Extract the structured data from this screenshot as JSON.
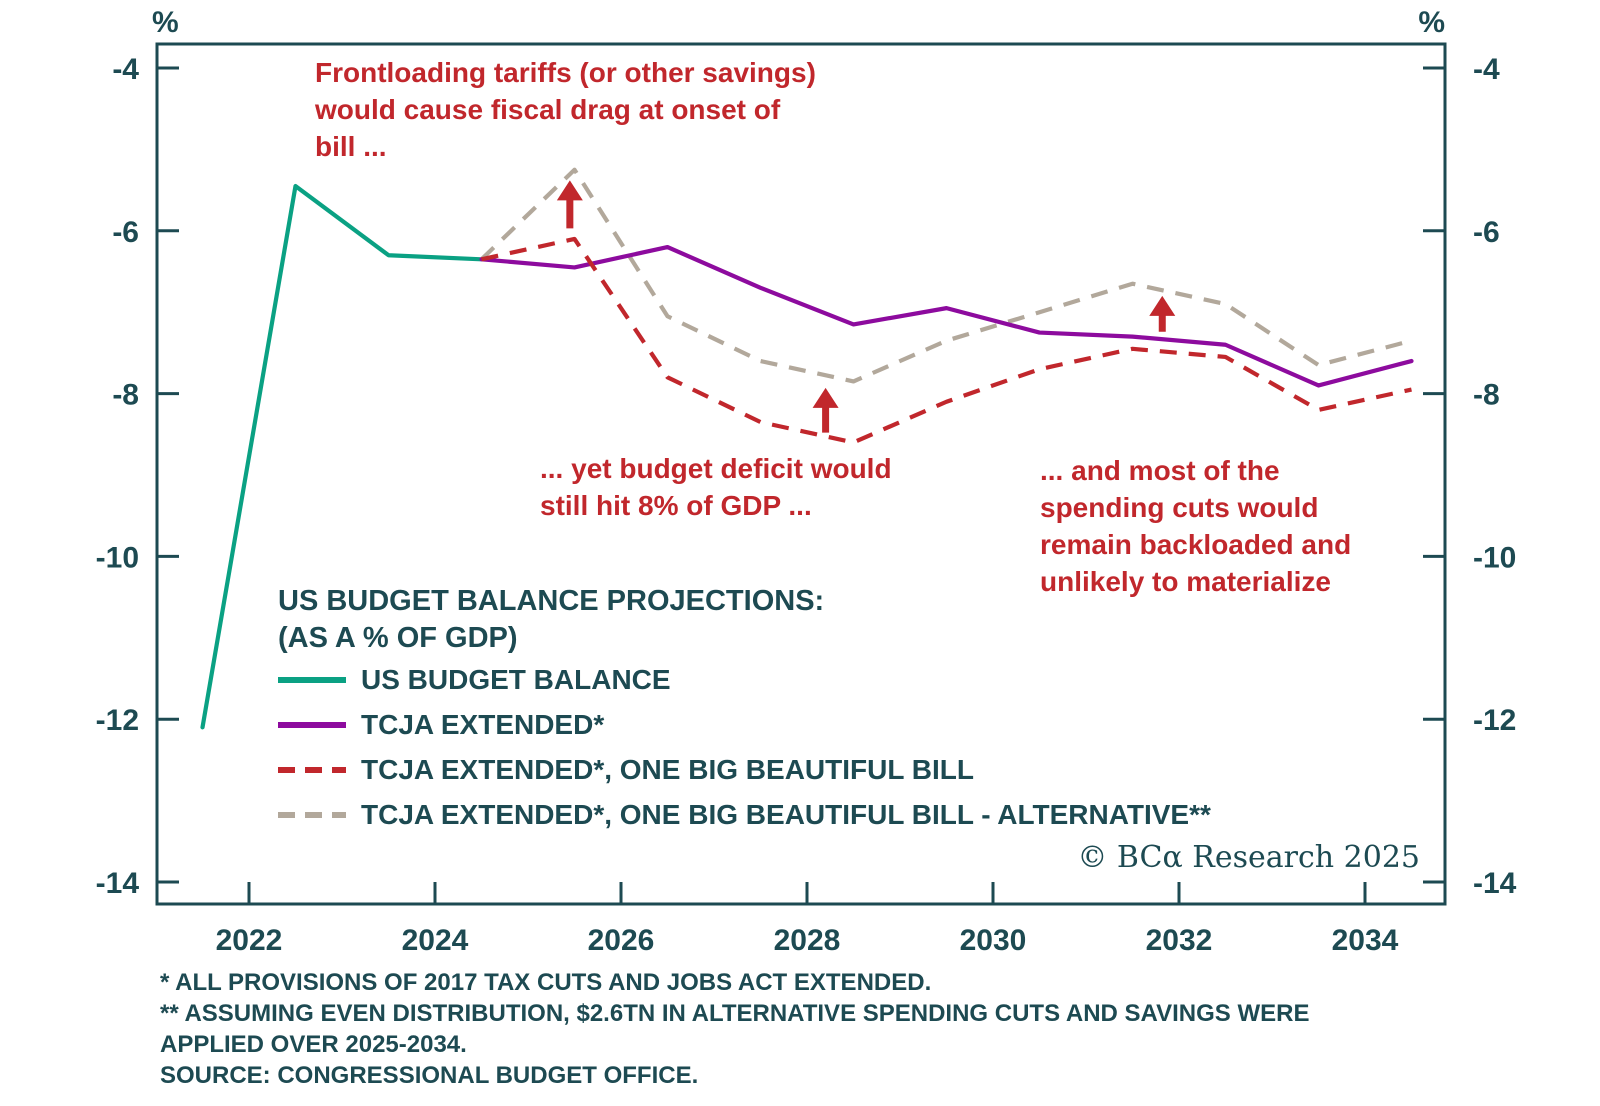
{
  "colors": {
    "teal": "#0aa183",
    "purple": "#8d0b9e",
    "red": "#c1272c",
    "gray": "#b2a89b",
    "axis": "#1d4a52",
    "annotation_red": "#c1272c",
    "background": "#ffffff"
  },
  "chart_data": {
    "type": "line",
    "title": "US BUDGET BALANCE PROJECTIONS:",
    "subtitle": "(AS A % OF GDP)",
    "unit_label": "%",
    "x_ticks": [
      2022,
      2024,
      2026,
      2028,
      2030,
      2032,
      2034
    ],
    "y_ticks": [
      -4,
      -6,
      -8,
      -10,
      -12,
      -14
    ],
    "x_range": [
      2020.95,
      2034.9
    ],
    "y_range": [
      -14.27,
      -3.67
    ],
    "grid": false,
    "legend_position": "inside-bottom-left",
    "series": [
      {
        "name": "US BUDGET BALANCE",
        "color_key": "teal",
        "style": "solid",
        "points": [
          [
            2021.5,
            -12.1
          ],
          [
            2022.5,
            -5.45
          ],
          [
            2023.5,
            -6.3
          ],
          [
            2024.5,
            -6.35
          ]
        ]
      },
      {
        "name": "TCJA EXTENDED*",
        "color_key": "purple",
        "style": "solid",
        "points": [
          [
            2024.5,
            -6.35
          ],
          [
            2025.5,
            -6.45
          ],
          [
            2026.5,
            -6.2
          ],
          [
            2027.5,
            -6.7
          ],
          [
            2028.5,
            -7.15
          ],
          [
            2029.5,
            -6.95
          ],
          [
            2030.5,
            -7.25
          ],
          [
            2031.5,
            -7.3
          ],
          [
            2032.5,
            -7.4
          ],
          [
            2033.5,
            -7.9
          ],
          [
            2034.5,
            -7.6
          ]
        ]
      },
      {
        "name": "TCJA EXTENDED*, ONE BIG BEAUTIFUL BILL",
        "color_key": "red",
        "style": "dashed",
        "points": [
          [
            2024.5,
            -6.35
          ],
          [
            2025.5,
            -6.1
          ],
          [
            2026.5,
            -7.8
          ],
          [
            2027.5,
            -8.35
          ],
          [
            2028.5,
            -8.6
          ],
          [
            2029.5,
            -8.1
          ],
          [
            2030.5,
            -7.7
          ],
          [
            2031.5,
            -7.45
          ],
          [
            2032.5,
            -7.55
          ],
          [
            2033.5,
            -8.2
          ],
          [
            2034.5,
            -7.95
          ]
        ]
      },
      {
        "name": "TCJA EXTENDED*, ONE BIG BEAUTIFUL BILL - ALTERNATIVE**",
        "color_key": "gray",
        "style": "dashed",
        "points": [
          [
            2024.5,
            -6.35
          ],
          [
            2025.5,
            -5.25
          ],
          [
            2026.5,
            -7.05
          ],
          [
            2027.5,
            -7.6
          ],
          [
            2028.5,
            -7.85
          ],
          [
            2029.5,
            -7.35
          ],
          [
            2030.5,
            -7.0
          ],
          [
            2031.5,
            -6.65
          ],
          [
            2032.5,
            -6.9
          ],
          [
            2033.5,
            -7.65
          ],
          [
            2034.5,
            -7.35
          ]
        ]
      }
    ],
    "arrows": [
      {
        "x": 2025.45,
        "from": -5.97,
        "to": -5.38
      },
      {
        "x": 2028.2,
        "from": -8.48,
        "to": -7.93
      },
      {
        "x": 2031.82,
        "from": -7.24,
        "to": -6.8
      }
    ],
    "annotations": {
      "frontloading": {
        "lines": [
          "Frontloading tariffs (or other savings)",
          "would cause fiscal drag at onset of",
          "bill ..."
        ]
      },
      "deficit": {
        "lines": [
          "... yet budget deficit would",
          "still hit 8% of GDP ..."
        ]
      },
      "backloaded": {
        "lines": [
          "... and most of the",
          "spending cuts would",
          "remain backloaded and",
          "unlikely to materialize"
        ]
      }
    }
  },
  "footnotes": {
    "lines": [
      "*  ALL PROVISIONS OF 2017 TAX CUTS AND JOBS ACT EXTENDED.",
      "** ASSUMING EVEN DISTRIBUTION, $2.6TN IN ALTERNATIVE SPENDING CUTS AND SAVINGS WERE",
      "APPLIED OVER 2025-2034.",
      "SOURCE: CONGRESSIONAL BUDGET OFFICE."
    ]
  },
  "copyright": "© BCα Research 2025"
}
